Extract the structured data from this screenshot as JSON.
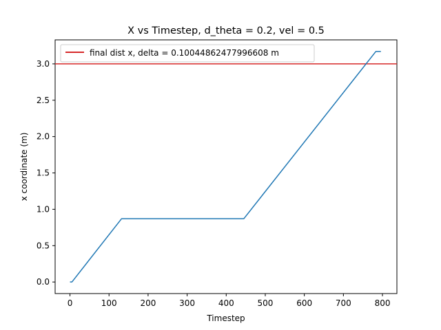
{
  "chart_data": {
    "type": "line",
    "title": "X vs Timestep, d_theta = 0.2, vel = 0.5",
    "xlabel": "Timestep",
    "ylabel": "x coordinate (m)",
    "xlim": [
      -38,
      837
    ],
    "ylim": [
      -0.159,
      3.33
    ],
    "xticks": [
      0,
      100,
      200,
      300,
      400,
      500,
      600,
      700,
      800
    ],
    "yticks": [
      0.0,
      0.5,
      1.0,
      1.5,
      2.0,
      2.5,
      3.0
    ],
    "ytick_labels": [
      "0.0",
      "0.5",
      "1.0",
      "1.5",
      "2.0",
      "2.5",
      "3.0"
    ],
    "grid": false,
    "legend_position": "upper-left",
    "series": [
      {
        "kind": "line",
        "color": "#1f77b4",
        "x": [
          0,
          5,
          132,
          445,
          783,
          796
        ],
        "y": [
          0.0,
          0.0,
          0.87,
          0.87,
          3.17,
          3.17
        ]
      }
    ],
    "reference_lines": [
      {
        "kind": "horizontal",
        "y": 3.0,
        "color": "#d62728",
        "name": "final dist x, delta = 0.10044862477996608 m"
      }
    ]
  }
}
